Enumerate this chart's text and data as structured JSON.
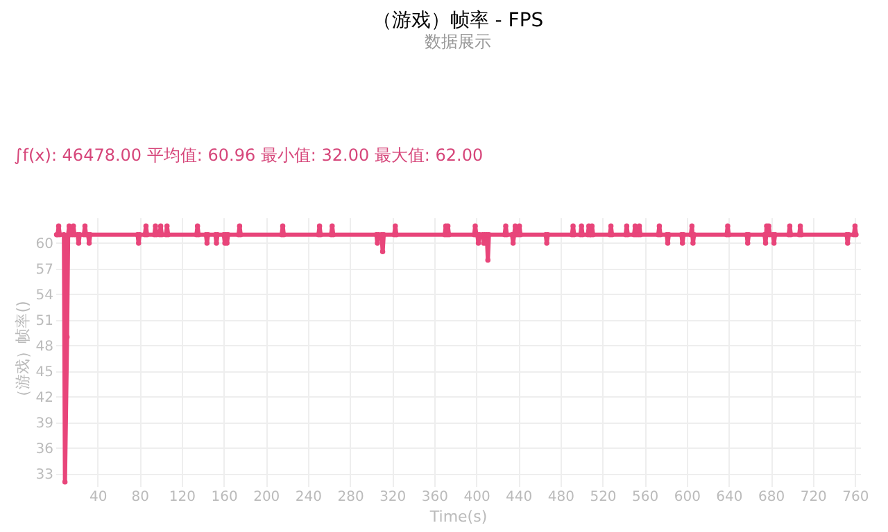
{
  "chart_data": {
    "type": "line",
    "title": "（游戏）帧率 - FPS",
    "subtitle": "数据展示",
    "xlabel": "Time(s)",
    "ylabel": "（游戏）帧率()",
    "annotations": [
      "∫f(x): 46478.00 平均值: 60.96 最小值: 32.00 最大值: 62.00"
    ],
    "x": [
      1,
      2,
      3,
      4,
      8,
      9,
      11,
      12,
      13,
      14,
      16,
      17,
      18,
      21,
      22,
      23,
      27,
      28,
      29,
      31,
      32,
      33,
      78,
      79,
      80,
      85,
      86,
      87,
      94,
      95,
      96,
      99,
      100,
      101,
      105,
      106,
      107,
      134,
      135,
      136,
      143,
      144,
      145,
      152,
      153,
      154,
      160,
      161,
      162,
      163,
      164,
      174,
      175,
      176,
      215,
      216,
      217,
      250,
      251,
      252,
      262,
      263,
      264,
      305,
      306,
      307,
      310,
      311,
      312,
      322,
      323,
      324,
      370,
      371,
      372,
      373,
      374,
      398,
      399,
      400,
      401,
      402,
      403,
      406,
      407,
      408,
      409,
      410,
      411,
      412,
      427,
      428,
      429,
      434,
      435,
      436,
      437,
      438,
      440,
      441,
      442,
      466,
      467,
      468,
      491,
      492,
      493,
      499,
      500,
      501,
      506,
      507,
      508,
      509,
      510,
      511,
      527,
      528,
      529,
      542,
      543,
      544,
      550,
      551,
      552,
      554,
      555,
      556,
      573,
      574,
      575,
      581,
      582,
      583,
      595,
      596,
      597,
      604,
      605,
      606,
      607,
      638,
      639,
      640,
      657,
      658,
      659,
      674,
      675,
      676,
      677,
      678,
      679,
      682,
      683,
      684,
      697,
      698,
      699,
      707,
      708,
      709,
      752,
      753,
      754,
      759,
      760,
      761
    ],
    "series": [
      {
        "color": "#e8457a",
        "values": [
          61,
          61,
          62,
          61,
          61,
          32,
          49,
          61,
          62,
          61,
          61,
          62,
          61,
          61,
          60,
          61,
          61,
          62,
          61,
          61,
          60,
          61,
          61,
          60,
          61,
          61,
          62,
          61,
          61,
          62,
          61,
          61,
          62,
          61,
          61,
          62,
          61,
          61,
          62,
          61,
          61,
          60,
          61,
          61,
          60,
          61,
          61,
          60,
          61,
          60,
          61,
          61,
          62,
          61,
          61,
          62,
          61,
          61,
          62,
          61,
          61,
          62,
          61,
          61,
          60,
          61,
          61,
          59,
          61,
          61,
          62,
          61,
          61,
          62,
          61,
          62,
          61,
          61,
          62,
          61,
          61,
          60,
          61,
          61,
          60,
          61,
          60,
          61,
          58,
          61,
          61,
          62,
          61,
          61,
          60,
          61,
          62,
          61,
          61,
          62,
          61,
          61,
          60,
          61,
          61,
          62,
          61,
          61,
          62,
          61,
          61,
          62,
          61,
          61,
          62,
          61,
          61,
          62,
          61,
          61,
          62,
          61,
          61,
          62,
          61,
          61,
          62,
          61,
          61,
          62,
          61,
          61,
          60,
          61,
          61,
          60,
          61,
          61,
          62,
          60,
          61,
          61,
          62,
          61,
          61,
          60,
          61,
          61,
          60,
          62,
          61,
          62,
          61,
          61,
          60,
          61,
          61,
          62,
          61,
          61,
          62,
          61,
          61,
          60,
          61,
          61,
          62,
          61
        ]
      }
    ],
    "xlim": [
      0,
      765
    ],
    "ylim": [
      31.5,
      63
    ],
    "xticks": [
      40,
      80,
      120,
      160,
      200,
      240,
      280,
      320,
      360,
      400,
      440,
      480,
      520,
      560,
      600,
      640,
      680,
      720,
      760
    ],
    "yticks": [
      33,
      36,
      39,
      42,
      45,
      48,
      51,
      54,
      57,
      60
    ],
    "grid": true,
    "marker": "circle",
    "line_style": "solid"
  }
}
